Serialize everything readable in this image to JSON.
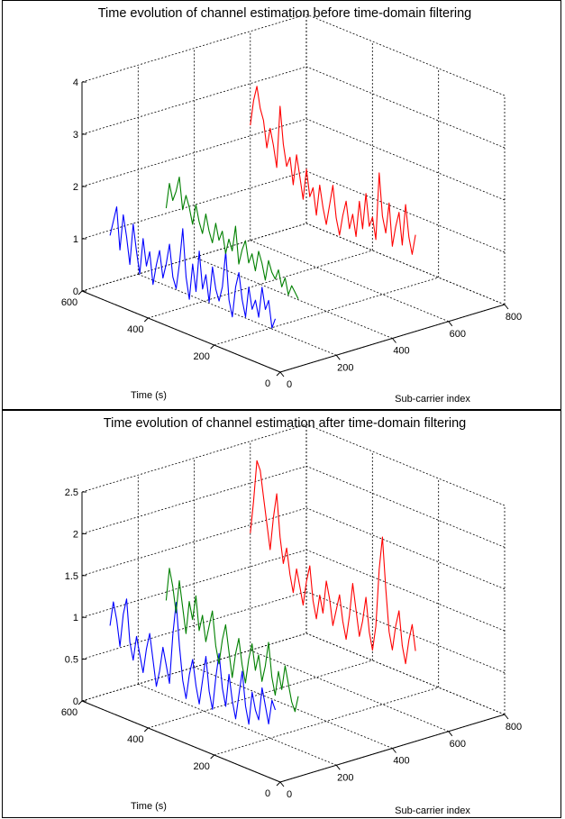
{
  "chart_data": [
    {
      "type": "line",
      "title": "Time evolution of channel estimation before time-domain filtering",
      "xlabel": "Sub-carrier index",
      "ylabel": "Time (s)",
      "zlabel": "",
      "xlim": [
        0,
        800
      ],
      "ylim": [
        0,
        600
      ],
      "zlim": [
        0,
        4
      ],
      "xticks": [
        "0",
        "200",
        "400",
        "600",
        "800"
      ],
      "yticks": [
        "0",
        "200",
        "400",
        "600"
      ],
      "zticks": [
        "0",
        "1",
        "2",
        "3",
        "4"
      ],
      "grid": true,
      "series": [
        {
          "color": "#0000ff",
          "subcarrier": 100,
          "time": [
            600,
            590,
            580,
            570,
            560,
            550,
            540,
            530,
            520,
            510,
            500,
            490,
            480,
            470,
            460,
            450,
            440,
            430,
            420,
            410,
            400,
            390,
            380,
            370,
            360,
            350,
            340,
            330,
            320,
            310,
            300,
            290,
            280,
            270,
            260,
            250,
            240,
            230,
            220,
            210,
            200,
            190,
            180,
            170,
            160,
            150,
            140,
            130,
            120,
            110,
            100
          ],
          "values": [
            0.9,
            1.2,
            1.5,
            0.7,
            1.4,
            1.0,
            0.5,
            1.3,
            0.8,
            0.4,
            1.1,
            0.6,
            0.9,
            0.3,
            0.7,
            1.0,
            0.5,
            0.8,
            1.2,
            0.6,
            0.4,
            0.9,
            1.6,
            0.7,
            0.3,
            1.0,
            0.5,
            1.3,
            0.6,
            0.9,
            0.4,
            1.1,
            0.7,
            0.5,
            0.8,
            1.5,
            0.6,
            0.3,
            0.9,
            1.2,
            0.7,
            0.4,
            1.0,
            0.6,
            0.8,
            0.5,
            1.1,
            0.7,
            0.9,
            0.4,
            0.6
          ]
        },
        {
          "color": "#008000",
          "subcarrier": 300,
          "time": [
            600,
            590,
            580,
            570,
            560,
            550,
            540,
            530,
            520,
            510,
            500,
            490,
            480,
            470,
            460,
            450,
            440,
            430,
            420,
            410,
            400,
            390,
            380,
            370,
            360,
            350,
            340,
            330,
            320,
            310,
            300,
            290,
            280,
            270,
            260,
            250,
            240,
            230,
            220,
            210,
            200
          ],
          "values": [
            1.1,
            1.6,
            1.3,
            1.5,
            1.8,
            1.2,
            1.5,
            1.3,
            1.0,
            1.4,
            1.1,
            0.9,
            1.3,
            1.0,
            0.8,
            1.2,
            0.9,
            1.1,
            0.7,
            1.0,
            0.8,
            1.3,
            0.6,
            0.9,
            1.1,
            0.7,
            0.9,
            0.6,
            1.0,
            0.8,
            0.5,
            0.9,
            0.7,
            0.6,
            0.8,
            0.5,
            0.7,
            0.4,
            0.6,
            0.5,
            0.4
          ]
        },
        {
          "color": "#ff0000",
          "subcarrier": 600,
          "time": [
            600,
            590,
            580,
            570,
            560,
            550,
            540,
            530,
            520,
            510,
            500,
            490,
            480,
            470,
            460,
            450,
            440,
            430,
            420,
            410,
            400,
            390,
            380,
            370,
            360,
            350,
            340,
            330,
            320,
            310,
            300,
            290,
            280,
            270,
            260,
            250,
            240,
            230,
            220,
            210,
            200,
            190,
            180,
            170,
            160,
            150,
            140,
            130,
            120,
            110,
            100
          ],
          "values": [
            2.2,
            2.7,
            3.0,
            2.6,
            2.4,
            1.9,
            2.3,
            2.0,
            1.6,
            2.8,
            2.1,
            1.7,
            1.9,
            1.4,
            2.0,
            1.6,
            1.2,
            1.8,
            1.3,
            1.5,
            1.0,
            1.6,
            1.2,
            0.9,
            1.3,
            1.7,
            1.1,
            0.8,
            1.2,
            1.5,
            1.0,
            1.3,
            0.9,
            1.6,
            1.1,
            1.8,
            1.2,
            1.4,
            1.0,
            2.3,
            1.5,
            1.2,
            1.8,
            1.0,
            1.4,
            1.7,
            1.1,
            1.9,
            1.3,
            1.0,
            1.4
          ]
        }
      ]
    },
    {
      "type": "line",
      "title": "Time evolution of channel estimation after time-domain filtering",
      "xlabel": "Sub-carrier index",
      "ylabel": "Time (s)",
      "zlabel": "",
      "xlim": [
        0,
        800
      ],
      "ylim": [
        0,
        600
      ],
      "zlim": [
        0,
        2.5
      ],
      "xticks": [
        "0",
        "200",
        "400",
        "600",
        "800"
      ],
      "yticks": [
        "0",
        "200",
        "400",
        "600"
      ],
      "zticks": [
        "0",
        "0.5",
        "1",
        "1.5",
        "2",
        "2.5"
      ],
      "grid": true,
      "series": [
        {
          "color": "#0000ff",
          "subcarrier": 100,
          "time": [
            600,
            590,
            580,
            570,
            560,
            550,
            540,
            530,
            520,
            510,
            500,
            490,
            480,
            470,
            460,
            450,
            440,
            430,
            420,
            410,
            400,
            390,
            380,
            370,
            360,
            350,
            340,
            330,
            320,
            310,
            300,
            290,
            280,
            270,
            260,
            250,
            240,
            230,
            220,
            210,
            200,
            190,
            180,
            170,
            160,
            150,
            140,
            130,
            120,
            110,
            100
          ],
          "values": [
            0.8,
            1.1,
            0.9,
            0.6,
            1.0,
            1.2,
            0.7,
            0.5,
            0.8,
            0.6,
            0.4,
            0.7,
            0.9,
            0.6,
            0.3,
            0.5,
            0.8,
            0.6,
            0.4,
            1.0,
            1.4,
            0.9,
            0.5,
            0.3,
            0.6,
            0.8,
            0.5,
            0.3,
            0.6,
            0.9,
            0.5,
            0.3,
            0.7,
            1.0,
            0.6,
            0.4,
            0.8,
            0.5,
            0.3,
            0.6,
            0.9,
            0.5,
            0.3,
            0.7,
            0.5,
            0.4,
            0.8,
            0.6,
            0.4,
            0.7,
            0.6
          ]
        },
        {
          "color": "#008000",
          "subcarrier": 300,
          "time": [
            600,
            590,
            580,
            570,
            560,
            550,
            540,
            530,
            520,
            510,
            500,
            490,
            480,
            470,
            460,
            450,
            440,
            430,
            420,
            410,
            400,
            390,
            380,
            370,
            360,
            350,
            340,
            330,
            320,
            310,
            300,
            290,
            280,
            270,
            260,
            250,
            240,
            230,
            220,
            210,
            200
          ],
          "values": [
            0.9,
            1.3,
            1.1,
            0.8,
            1.2,
            0.9,
            0.6,
            1.0,
            0.8,
            1.1,
            0.7,
            0.9,
            0.6,
            0.8,
            1.0,
            0.6,
            0.4,
            0.7,
            0.9,
            0.6,
            0.3,
            0.6,
            0.8,
            0.5,
            0.3,
            0.6,
            0.8,
            0.5,
            0.7,
            0.4,
            0.6,
            0.9,
            0.5,
            0.3,
            0.6,
            0.4,
            0.7,
            0.5,
            0.3,
            0.2,
            0.4
          ]
        },
        {
          "color": "#ff0000",
          "subcarrier": 600,
          "time": [
            600,
            590,
            580,
            570,
            560,
            550,
            540,
            530,
            520,
            510,
            500,
            490,
            480,
            470,
            460,
            450,
            440,
            430,
            420,
            410,
            400,
            390,
            380,
            370,
            360,
            350,
            340,
            330,
            320,
            310,
            300,
            290,
            280,
            270,
            260,
            250,
            240,
            230,
            220,
            210,
            200,
            190,
            180,
            170,
            160,
            150,
            140,
            130,
            120,
            110,
            100
          ],
          "values": [
            1.4,
            1.8,
            2.3,
            2.2,
            1.9,
            1.6,
            1.3,
            1.7,
            2.0,
            1.5,
            1.2,
            1.4,
            1.1,
            0.9,
            1.2,
            1.0,
            0.8,
            1.1,
            1.3,
            0.9,
            0.7,
            1.0,
            0.8,
            1.2,
            1.0,
            0.7,
            0.9,
            1.1,
            0.8,
            0.6,
            0.9,
            1.3,
            1.0,
            0.7,
            0.9,
            1.2,
            0.8,
            0.6,
            0.9,
            1.6,
            2.0,
            1.4,
            0.9,
            0.7,
            1.0,
            1.2,
            0.8,
            0.6,
            0.9,
            1.1,
            0.8
          ]
        }
      ]
    }
  ]
}
